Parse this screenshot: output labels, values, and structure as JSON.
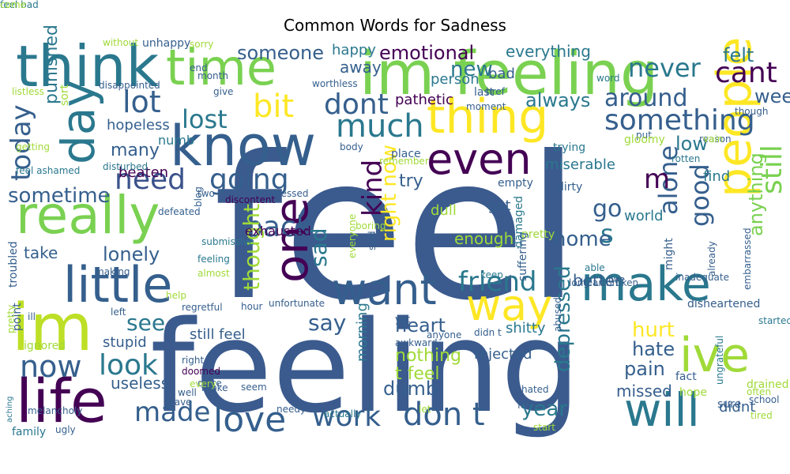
{
  "title": "Common Words for Sadness",
  "words": [
    {
      "text": "feel",
      "color": "#3b5b8e"
    },
    {
      "text": "feeling",
      "color": "#3b5b8e"
    },
    {
      "text": "im feeling",
      "color": "#7ad151"
    },
    {
      "text": "time",
      "color": "#7ad151"
    },
    {
      "text": "think",
      "color": "#2a788e"
    },
    {
      "text": "know",
      "color": "#355f8d"
    },
    {
      "text": "thing",
      "color": "#fde725"
    },
    {
      "text": "day",
      "color": "#2a788e"
    },
    {
      "text": "really",
      "color": "#7ad151"
    },
    {
      "text": "im",
      "color": "#bddf26"
    },
    {
      "text": "life",
      "color": "#440154"
    },
    {
      "text": "little",
      "color": "#355f8d"
    },
    {
      "text": "one",
      "color": "#440154"
    },
    {
      "text": "people",
      "color": "#fde725"
    },
    {
      "text": "make",
      "color": "#2a788e"
    },
    {
      "text": "even",
      "color": "#440154"
    },
    {
      "text": "want",
      "color": "#355f8d"
    },
    {
      "text": "way",
      "color": "#fde725"
    },
    {
      "text": "ive",
      "color": "#a0da39"
    },
    {
      "text": "will",
      "color": "#2a788e"
    },
    {
      "text": "love",
      "color": "#355f8d"
    },
    {
      "text": "made",
      "color": "#355f8d"
    },
    {
      "text": "work",
      "color": "#355f8d"
    },
    {
      "text": "don t",
      "color": "#355f8d"
    },
    {
      "text": "now",
      "color": "#355f8d"
    },
    {
      "text": "look",
      "color": "#2a788e"
    },
    {
      "text": "lot",
      "color": "#355f8d"
    },
    {
      "text": "bit",
      "color": "#fde725"
    },
    {
      "text": "dont",
      "color": "#355f8d"
    },
    {
      "text": "much",
      "color": "#2a788e"
    },
    {
      "text": "lost",
      "color": "#2a788e"
    },
    {
      "text": "today",
      "color": "#355f8d"
    },
    {
      "text": "need",
      "color": "#3b528b"
    },
    {
      "text": "going",
      "color": "#355f8d"
    },
    {
      "text": "back",
      "color": "#355f8d"
    },
    {
      "text": "something",
      "color": "#355f8d"
    },
    {
      "text": "cant",
      "color": "#440154"
    },
    {
      "text": "never",
      "color": "#2a788e"
    },
    {
      "text": "always",
      "color": "#2a788e"
    },
    {
      "text": "around",
      "color": "#355f8d"
    },
    {
      "text": "week",
      "color": "#355f8d"
    },
    {
      "text": "felt",
      "color": "#2a788e"
    },
    {
      "text": "still",
      "color": "#7ad151"
    },
    {
      "text": "anything",
      "color": "#7ad151"
    },
    {
      "text": "friend",
      "color": "#2a788e"
    },
    {
      "text": "good",
      "color": "#355f8d"
    },
    {
      "text": "alone",
      "color": "#355f8d"
    },
    {
      "text": "kind",
      "color": "#440154"
    },
    {
      "text": "right now",
      "color": "#fde725"
    },
    {
      "text": "go",
      "color": "#355f8d"
    },
    {
      "text": "m",
      "color": "#440154"
    },
    {
      "text": "s",
      "color": "#2a788e"
    },
    {
      "text": "low",
      "color": "#2a788e"
    },
    {
      "text": "sometime",
      "color": "#355f8d"
    },
    {
      "text": "lonely",
      "color": "#355f8d"
    },
    {
      "text": "take",
      "color": "#355f8d"
    },
    {
      "text": "see",
      "color": "#2a788e"
    },
    {
      "text": "say",
      "color": "#355f8d"
    },
    {
      "text": "sad",
      "color": "#2a788e"
    },
    {
      "text": "thought",
      "color": "#a0da39"
    },
    {
      "text": "home",
      "color": "#355f8d"
    },
    {
      "text": "hurt",
      "color": "#fde725"
    },
    {
      "text": "hate",
      "color": "#355f8d"
    },
    {
      "text": "pain",
      "color": "#355f8d"
    },
    {
      "text": "year",
      "color": "#2a788e"
    },
    {
      "text": "heart",
      "color": "#355f8d"
    },
    {
      "text": "nothing",
      "color": "#a0da39"
    },
    {
      "text": "emotional",
      "color": "#440154"
    },
    {
      "text": "someone",
      "color": "#355f8d"
    },
    {
      "text": "everything",
      "color": "#2a788e"
    },
    {
      "text": "happy",
      "color": "#2a788e"
    },
    {
      "text": "away",
      "color": "#355f8d"
    },
    {
      "text": "new",
      "color": "#2a788e"
    },
    {
      "text": "punished",
      "color": "#2a788e"
    },
    {
      "text": "hopeless",
      "color": "#355f8d"
    },
    {
      "text": "many",
      "color": "#355f8d"
    },
    {
      "text": "beaten",
      "color": "#440154"
    },
    {
      "text": "numb",
      "color": "#2a788e"
    },
    {
      "text": "exhausted",
      "color": "#440154"
    },
    {
      "text": "miserable",
      "color": "#2a788e"
    },
    {
      "text": "find",
      "color": "#2a788e"
    },
    {
      "text": "world",
      "color": "#2a788e"
    },
    {
      "text": "enough",
      "color": "#a0da39"
    },
    {
      "text": "dull",
      "color": "#a0da39"
    },
    {
      "text": "got",
      "color": "#355f8d"
    },
    {
      "text": "try",
      "color": "#355f8d"
    },
    {
      "text": "better",
      "color": "#355f8d"
    },
    {
      "text": "shitty",
      "color": "#2a788e"
    },
    {
      "text": "depressed",
      "color": "#2a788e"
    },
    {
      "text": "missed",
      "color": "#355f8d"
    },
    {
      "text": "didnt",
      "color": "#355f8d"
    },
    {
      "text": "still feel",
      "color": "#355f8d"
    },
    {
      "text": "stupid",
      "color": "#355f8d"
    },
    {
      "text": "useless",
      "color": "#355f8d"
    },
    {
      "text": "morning",
      "color": "#2a788e"
    },
    {
      "text": "rejected",
      "color": "#355f8d"
    },
    {
      "text": "t feel",
      "color": "#a0da39"
    },
    {
      "text": "dumb",
      "color": "#355f8d"
    },
    {
      "text": "pathetic",
      "color": "#440154"
    },
    {
      "text": "person",
      "color": "#2a788e"
    },
    {
      "text": "bad",
      "color": "#355f8d"
    },
    {
      "text": "trying",
      "color": "#2a788e"
    },
    {
      "text": "place",
      "color": "#355f8d"
    },
    {
      "text": "empty",
      "color": "#355f8d"
    },
    {
      "text": "dirty",
      "color": "#355f8d"
    },
    {
      "text": "pretty",
      "color": "#a0da39"
    },
    {
      "text": "damaged",
      "color": "#2a788e"
    },
    {
      "text": "keep",
      "color": "#2a788e"
    },
    {
      "text": "suffering",
      "color": "#355f8d"
    },
    {
      "text": "able",
      "color": "#2a788e"
    },
    {
      "text": "live",
      "color": "#355f8d"
    },
    {
      "text": "long",
      "color": "#355f8d"
    },
    {
      "text": "heartbroken",
      "color": "#355f8d"
    },
    {
      "text": "might",
      "color": "#355f8d"
    },
    {
      "text": "disheartened",
      "color": "#355f8d"
    },
    {
      "text": "fact",
      "color": "#355f8d"
    },
    {
      "text": "hope",
      "color": "#a0da39"
    },
    {
      "text": "sure",
      "color": "#355f8d"
    },
    {
      "text": "school",
      "color": "#355f8d"
    },
    {
      "text": "tired",
      "color": "#a0da39"
    },
    {
      "text": "drained",
      "color": "#a0da39"
    },
    {
      "text": "often",
      "color": "#a0da39"
    },
    {
      "text": "ungrateful",
      "color": "#2a788e"
    },
    {
      "text": "started",
      "color": "#2a788e"
    },
    {
      "text": "embarrassed",
      "color": "#355f8d"
    },
    {
      "text": "unhappy",
      "color": "#355f8d"
    },
    {
      "text": "without",
      "color": "#a0da39"
    },
    {
      "text": "sorry",
      "color": "#a0da39"
    },
    {
      "text": "end",
      "color": "#355f8d"
    },
    {
      "text": "disappointed",
      "color": "#355f8d"
    },
    {
      "text": "month",
      "color": "#355f8d"
    },
    {
      "text": "give",
      "color": "#355f8d"
    },
    {
      "text": "worthless",
      "color": "#355f8d"
    },
    {
      "text": "listless",
      "color": "#a0da39"
    },
    {
      "text": "sort",
      "color": "#a0da39"
    },
    {
      "text": "getting",
      "color": "#a0da39"
    },
    {
      "text": "feel ashamed",
      "color": "#2a788e"
    },
    {
      "text": "disturbed",
      "color": "#2a788e"
    },
    {
      "text": "two",
      "color": "#355f8d"
    },
    {
      "text": "stressed",
      "color": "#355f8d"
    },
    {
      "text": "discontent",
      "color": "#440154"
    },
    {
      "text": "defeated",
      "color": "#355f8d"
    },
    {
      "text": "blog",
      "color": "#355f8d"
    },
    {
      "text": "submissive",
      "color": "#2a788e"
    },
    {
      "text": "boring",
      "color": "#a0da39"
    },
    {
      "text": "said",
      "color": "#355f8d"
    },
    {
      "text": "everyone",
      "color": "#a0da39"
    },
    {
      "text": "remember",
      "color": "#a0da39"
    },
    {
      "text": "body",
      "color": "#355f8d"
    },
    {
      "text": "troubled",
      "color": "#355f8d"
    },
    {
      "text": "ignored",
      "color": "#a0da39"
    },
    {
      "text": "ill",
      "color": "#355f8d"
    },
    {
      "text": "point",
      "color": "#355f8d"
    },
    {
      "text": "aching",
      "color": "#2a788e"
    },
    {
      "text": "pretty",
      "color": "#a0da39"
    },
    {
      "text": "feeling",
      "color": "#2a788e"
    },
    {
      "text": "almost",
      "color": "#a0da39"
    },
    {
      "text": "making",
      "color": "#355f8d"
    },
    {
      "text": "help",
      "color": "#a0da39"
    },
    {
      "text": "left",
      "color": "#355f8d"
    },
    {
      "text": "regretful",
      "color": "#355f8d"
    },
    {
      "text": "unfortunate",
      "color": "#355f8d"
    },
    {
      "text": "hour",
      "color": "#355f8d"
    },
    {
      "text": "yet",
      "color": "#355f8d"
    },
    {
      "text": "awkward",
      "color": "#355f8d"
    },
    {
      "text": "right",
      "color": "#355f8d"
    },
    {
      "text": "doomed",
      "color": "#440154"
    },
    {
      "text": "quite",
      "color": "#355f8d"
    },
    {
      "text": "broke",
      "color": "#355f8d"
    },
    {
      "text": "every",
      "color": "#a0da39"
    },
    {
      "text": "well",
      "color": "#355f8d"
    },
    {
      "text": "leave",
      "color": "#355f8d"
    },
    {
      "text": "seem",
      "color": "#355f8d"
    },
    {
      "text": "needy",
      "color": "#355f8d"
    },
    {
      "text": "actually",
      "color": "#2a788e"
    },
    {
      "text": "let",
      "color": "#a0da39"
    },
    {
      "text": "fake",
      "color": "#355f8d"
    },
    {
      "text": "hated",
      "color": "#355f8d"
    },
    {
      "text": "abused",
      "color": "#355f8d"
    },
    {
      "text": "didn t",
      "color": "#355f8d"
    },
    {
      "text": "melancholy",
      "color": "#355f8d"
    },
    {
      "text": "family",
      "color": "#2a788e"
    },
    {
      "text": "ugly",
      "color": "#355f8d"
    },
    {
      "text": "start",
      "color": "#a0da39"
    },
    {
      "text": "inadequate",
      "color": "#355f8d"
    },
    {
      "text": "already",
      "color": "#355f8d"
    },
    {
      "text": "anyone",
      "color": "#355f8d"
    },
    {
      "text": "reason",
      "color": "#355f8d"
    },
    {
      "text": "vain",
      "color": "#a0da39"
    },
    {
      "text": "put",
      "color": "#355f8d"
    },
    {
      "text": "rotten",
      "color": "#2a788e"
    },
    {
      "text": "word",
      "color": "#2a788e"
    },
    {
      "text": "though",
      "color": "#355f8d"
    },
    {
      "text": "href",
      "color": "#355f8d"
    },
    {
      "text": "moment",
      "color": "#355f8d"
    },
    {
      "text": "last",
      "color": "#355f8d"
    },
    {
      "text": "gloomy",
      "color": "#a0da39"
    },
    {
      "text": "feel bad",
      "color": "#2a788e"
    },
    {
      "text": "come",
      "color": "#a0da39"
    }
  ]
}
